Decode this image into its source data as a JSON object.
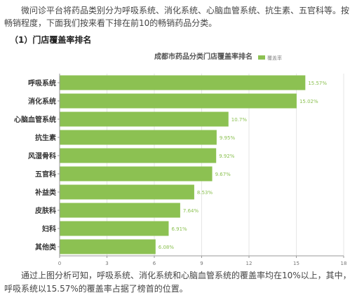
{
  "intro_text": "微问诊平台将药品类别分为呼吸系统、消化系统、心脑血管系统、抗生素、五官科等。按畅销程度，下面我们按来看下排在前10的畅销药品分类。",
  "section_title": "（1）门店覆盖率排名",
  "outro_text": "通过上图分析可知，呼吸系统、消化系统和心脑血管系统的覆盖率均在10%以上，其中，呼吸系统以15.57%的覆盖率占据了榜首的位置。",
  "colors": {
    "bar": "#8cc152",
    "axis": "#999999",
    "grid": "#e6e6e6",
    "label": "#8cc152"
  },
  "chart_data": {
    "type": "bar",
    "orientation": "horizontal",
    "title": "成都市药品分类门店覆盖率排名",
    "legend": {
      "label": "覆盖率",
      "position": "top-right"
    },
    "categories": [
      "呼吸系统",
      "消化系统",
      "心脑血管系统",
      "抗生素",
      "风湿骨科",
      "五官科",
      "补益类",
      "皮肤科",
      "妇科",
      "其他类"
    ],
    "values": [
      15.57,
      15.02,
      10.7,
      9.95,
      9.92,
      9.67,
      8.53,
      7.64,
      6.91,
      6.08
    ],
    "value_labels": [
      "15.57%",
      "15.02%",
      "10.7%",
      "9.95%",
      "9.92%",
      "9.67%",
      "8.53%",
      "7.64%",
      "6.91%",
      "6.08%"
    ],
    "xlim": [
      0,
      18
    ],
    "xticks": [
      "0",
      "3",
      "6",
      "9",
      "12",
      "15",
      "18"
    ],
    "grid": true
  }
}
